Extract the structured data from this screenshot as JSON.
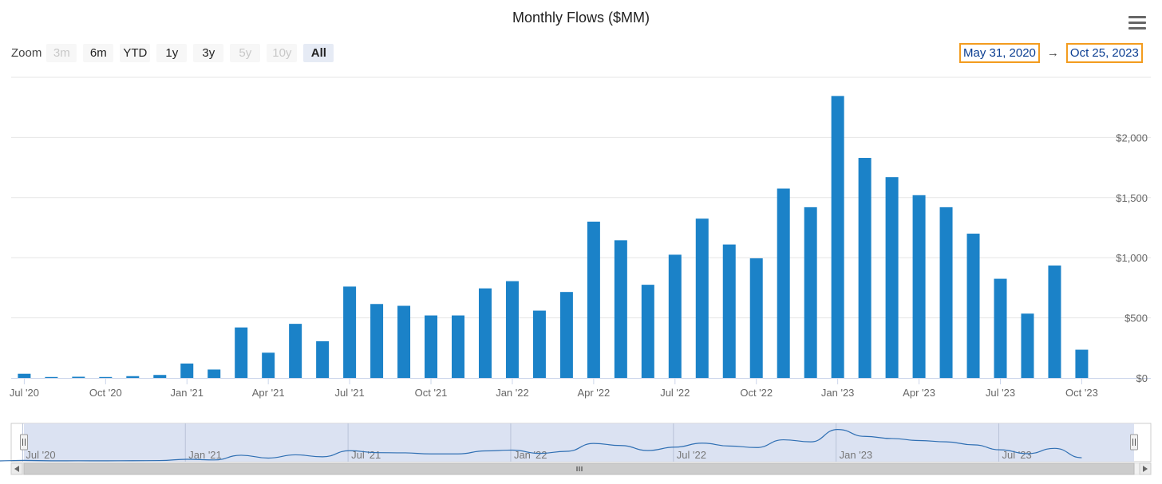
{
  "title": "Monthly Flows ($MM)",
  "menu_icon": "hamburger-menu-icon",
  "zoom": {
    "label": "Zoom",
    "buttons": [
      {
        "label": "3m",
        "state": "disabled"
      },
      {
        "label": "6m",
        "state": "normal"
      },
      {
        "label": "YTD",
        "state": "normal"
      },
      {
        "label": "1y",
        "state": "normal"
      },
      {
        "label": "3y",
        "state": "normal"
      },
      {
        "label": "5y",
        "state": "disabled"
      },
      {
        "label": "10y",
        "state": "disabled"
      },
      {
        "label": "All",
        "state": "active"
      }
    ]
  },
  "range": {
    "from": "May 31, 2020",
    "arrow": "→",
    "to": "Oct 25, 2023"
  },
  "colors": {
    "bar": "#1b82c8",
    "navigator_fill": "#d5ddf0",
    "navigator_line": "#2f6fb3",
    "grid": "#e6e6e6",
    "axis_label": "#666666"
  },
  "chart_data": {
    "type": "bar",
    "title": "Monthly Flows ($MM)",
    "xlabel": "",
    "ylabel": "",
    "categories": [
      "May '20",
      "Jun '20",
      "Jul '20",
      "Aug '20",
      "Sep '20",
      "Oct '20",
      "Nov '20",
      "Dec '20",
      "Jan '21",
      "Feb '21",
      "Mar '21",
      "Apr '21",
      "May '21",
      "Jun '21",
      "Jul '21",
      "Aug '21",
      "Sep '21",
      "Oct '21",
      "Nov '21",
      "Dec '21",
      "Jan '22",
      "Feb '22",
      "Mar '22",
      "Apr '22",
      "May '22",
      "Jun '22",
      "Jul '22",
      "Aug '22",
      "Sep '22",
      "Oct '22",
      "Nov '22",
      "Dec '22",
      "Jan '23",
      "Feb '23",
      "Mar '23",
      "Apr '23",
      "May '23",
      "Jun '23",
      "Jul '23",
      "Aug '23",
      "Sep '23",
      "Oct '23"
    ],
    "values": [
      0,
      0,
      35,
      8,
      10,
      8,
      15,
      25,
      120,
      70,
      420,
      210,
      450,
      305,
      760,
      615,
      600,
      520,
      520,
      745,
      805,
      560,
      715,
      1300,
      1145,
      775,
      1025,
      1325,
      1110,
      995,
      1575,
      1420,
      2345,
      1830,
      1670,
      1520,
      1420,
      1200,
      825,
      535,
      935,
      235
    ],
    "ylim": [
      0,
      2500
    ],
    "y_ticks": [
      0,
      500,
      1000,
      1500,
      2000
    ],
    "y_tick_labels": [
      "$0",
      "$500",
      "$1,000",
      "$1,500",
      "$2,000"
    ],
    "y_axis_side": "right",
    "x_ticks": [
      {
        "index": 2,
        "label": "Jul '20"
      },
      {
        "index": 5,
        "label": "Oct '20"
      },
      {
        "index": 8,
        "label": "Jan '21"
      },
      {
        "index": 11,
        "label": "Apr '21"
      },
      {
        "index": 14,
        "label": "Jul '21"
      },
      {
        "index": 17,
        "label": "Oct '21"
      },
      {
        "index": 20,
        "label": "Jan '22"
      },
      {
        "index": 23,
        "label": "Apr '22"
      },
      {
        "index": 26,
        "label": "Jul '22"
      },
      {
        "index": 29,
        "label": "Oct '22"
      },
      {
        "index": 32,
        "label": "Jan '23"
      },
      {
        "index": 35,
        "label": "Apr '23"
      },
      {
        "index": 38,
        "label": "Jul '23"
      },
      {
        "index": 41,
        "label": "Oct '23"
      }
    ],
    "grid": true,
    "navigator": {
      "type": "line",
      "labels": [
        {
          "index": 2,
          "label": "Jul '20"
        },
        {
          "index": 8,
          "label": "Jan '21"
        },
        {
          "index": 14,
          "label": "Jul '21"
        },
        {
          "index": 20,
          "label": "Jan '22"
        },
        {
          "index": 26,
          "label": "Jul '22"
        },
        {
          "index": 32,
          "label": "Jan '23"
        },
        {
          "index": 38,
          "label": "Jul '23"
        }
      ]
    }
  }
}
